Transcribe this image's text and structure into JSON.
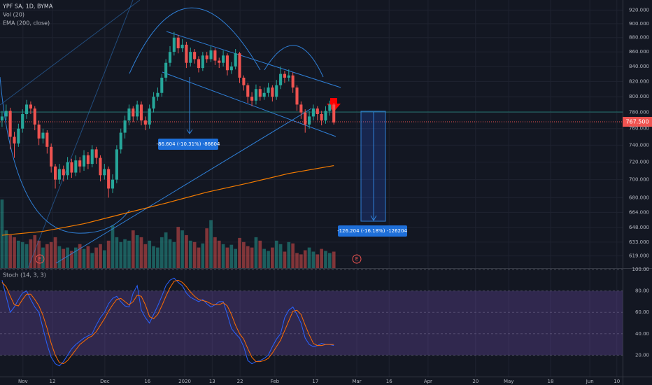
{
  "chart_data": {
    "type": "candlestick",
    "title": "YPF SA, 1D, BYMA",
    "indicators": [
      "Vol (20)",
      "EMA (200, close)"
    ],
    "up_color": "#26a69a",
    "down_color": "#ef5350",
    "log_scale": true,
    "grid": true,
    "xlim": [
      -0.5,
      151.5
    ],
    "xticks": [
      {
        "value": 5.1,
        "label": "Nov"
      },
      {
        "value": 12.3,
        "label": "12"
      },
      {
        "value": 25.1,
        "label": "Dec"
      },
      {
        "value": 35.5,
        "label": "16"
      },
      {
        "value": 44.6,
        "label": "2020"
      },
      {
        "value": 51.3,
        "label": "13"
      },
      {
        "value": 58.1,
        "label": "22"
      },
      {
        "value": 66.6,
        "label": "Feb"
      },
      {
        "value": 76.5,
        "label": "17"
      },
      {
        "value": 86.6,
        "label": "Mar"
      },
      {
        "value": 94.5,
        "label": "16"
      },
      {
        "value": 104,
        "label": "Apr"
      },
      {
        "value": 115.6,
        "label": "20"
      },
      {
        "value": 123.7,
        "label": "May"
      },
      {
        "value": 133.9,
        "label": "18"
      },
      {
        "value": 143.5,
        "label": "Jun"
      },
      {
        "value": 150.1,
        "label": "10"
      }
    ],
    "ylim": [
      607,
      935
    ],
    "yticks": [
      {
        "value": 920,
        "label": "920.000"
      },
      {
        "value": 900,
        "label": "900.000"
      },
      {
        "value": 880,
        "label": "880.000"
      },
      {
        "value": 860,
        "label": "860.000"
      },
      {
        "value": 840,
        "label": "840.000"
      },
      {
        "value": 820,
        "label": "820.000"
      },
      {
        "value": 800,
        "label": "800.000"
      },
      {
        "value": 780,
        "label": "780.000"
      },
      {
        "value": 760,
        "label": "760.000"
      },
      {
        "value": 740,
        "label": "740.000"
      },
      {
        "value": 720,
        "label": "720.000"
      },
      {
        "value": 700,
        "label": "700.000"
      },
      {
        "value": 680,
        "label": "680.000"
      },
      {
        "value": 664,
        "label": "664.000"
      },
      {
        "value": 648,
        "label": "648.000"
      },
      {
        "value": 633,
        "label": "633.000"
      },
      {
        "value": 619,
        "label": "619.000"
      }
    ],
    "last_price": {
      "value": 767.5,
      "label": "767.500"
    },
    "candles": [
      [
        770,
        782,
        762,
        775
      ],
      [
        775,
        790,
        770,
        782
      ],
      [
        782,
        786,
        735,
        750
      ],
      [
        750,
        756,
        725,
        742
      ],
      [
        742,
        766,
        738,
        760
      ],
      [
        760,
        784,
        755,
        778
      ],
      [
        778,
        796,
        772,
        790
      ],
      [
        790,
        794,
        778,
        785
      ],
      [
        785,
        788,
        758,
        765
      ],
      [
        765,
        770,
        740,
        748
      ],
      [
        748,
        760,
        742,
        755
      ],
      [
        755,
        758,
        730,
        738
      ],
      [
        738,
        742,
        708,
        715
      ],
      [
        715,
        718,
        690,
        700
      ],
      [
        700,
        718,
        695,
        712
      ],
      [
        712,
        716,
        698,
        705
      ],
      [
        705,
        726,
        700,
        720
      ],
      [
        720,
        724,
        702,
        708
      ],
      [
        708,
        728,
        704,
        722
      ],
      [
        722,
        726,
        708,
        715
      ],
      [
        715,
        734,
        710,
        728
      ],
      [
        728,
        732,
        712,
        718
      ],
      [
        718,
        740,
        714,
        735
      ],
      [
        735,
        738,
        718,
        725
      ],
      [
        725,
        728,
        698,
        705
      ],
      [
        705,
        718,
        700,
        712
      ],
      [
        712,
        715,
        680,
        690
      ],
      [
        690,
        706,
        685,
        700
      ],
      [
        700,
        740,
        696,
        735
      ],
      [
        735,
        760,
        730,
        755
      ],
      [
        755,
        776,
        748,
        770
      ],
      [
        770,
        790,
        764,
        785
      ],
      [
        785,
        788,
        768,
        775
      ],
      [
        775,
        795,
        770,
        790
      ],
      [
        790,
        794,
        764,
        770
      ],
      [
        770,
        775,
        758,
        765
      ],
      [
        765,
        790,
        760,
        785
      ],
      [
        785,
        806,
        780,
        800
      ],
      [
        800,
        812,
        795,
        805
      ],
      [
        805,
        830,
        800,
        825
      ],
      [
        825,
        850,
        820,
        845
      ],
      [
        845,
        868,
        840,
        860
      ],
      [
        860,
        888,
        855,
        880
      ],
      [
        880,
        884,
        858,
        865
      ],
      [
        865,
        878,
        860,
        870
      ],
      [
        870,
        874,
        838,
        845
      ],
      [
        845,
        866,
        840,
        860
      ],
      [
        860,
        864,
        844,
        850
      ],
      [
        850,
        854,
        832,
        838
      ],
      [
        838,
        860,
        834,
        855
      ],
      [
        855,
        860,
        845,
        850
      ],
      [
        850,
        868,
        846,
        862
      ],
      [
        862,
        865,
        842,
        848
      ],
      [
        848,
        852,
        838,
        845
      ],
      [
        845,
        862,
        840,
        855
      ],
      [
        855,
        858,
        828,
        835
      ],
      [
        835,
        846,
        830,
        840
      ],
      [
        840,
        864,
        836,
        858
      ],
      [
        858,
        860,
        818,
        825
      ],
      [
        825,
        828,
        808,
        815
      ],
      [
        815,
        818,
        792,
        800
      ],
      [
        800,
        806,
        788,
        795
      ],
      [
        795,
        816,
        790,
        810
      ],
      [
        810,
        814,
        795,
        800
      ],
      [
        800,
        812,
        796,
        805
      ],
      [
        805,
        818,
        800,
        812
      ],
      [
        812,
        815,
        794,
        800
      ],
      [
        800,
        822,
        796,
        815
      ],
      [
        815,
        840,
        810,
        830
      ],
      [
        830,
        834,
        818,
        825
      ],
      [
        825,
        836,
        820,
        828
      ],
      [
        828,
        832,
        805,
        812
      ],
      [
        812,
        815,
        782,
        790
      ],
      [
        790,
        794,
        772,
        780
      ],
      [
        780,
        784,
        755,
        765
      ],
      [
        765,
        782,
        760,
        775
      ],
      [
        775,
        790,
        770,
        785
      ],
      [
        785,
        788,
        770,
        778
      ],
      [
        778,
        782,
        764,
        770
      ],
      [
        770,
        788,
        766,
        782
      ],
      [
        782,
        795,
        776,
        790
      ],
      [
        790,
        792,
        765,
        767.5
      ]
    ],
    "volume": [
      100,
      55,
      48,
      45,
      40,
      38,
      35,
      42,
      48,
      40,
      30,
      35,
      38,
      45,
      32,
      28,
      30,
      25,
      30,
      35,
      28,
      32,
      22,
      30,
      35,
      26,
      40,
      62,
      45,
      38,
      42,
      40,
      55,
      48,
      45,
      35,
      40,
      32,
      30,
      45,
      52,
      42,
      38,
      60,
      55,
      48,
      40,
      38,
      30,
      36,
      58,
      70,
      45,
      40,
      35,
      30,
      34,
      28,
      44,
      38,
      32,
      30,
      45,
      40,
      28,
      25,
      30,
      40,
      35,
      24,
      38,
      36,
      22,
      20,
      26,
      30,
      24,
      20,
      28,
      25,
      22,
      24
    ],
    "ema": {
      "color": "#f57c00",
      "x": [
        0,
        10,
        20,
        30,
        40,
        50,
        60,
        70,
        81
      ],
      "values": [
        640,
        644,
        652,
        663,
        674,
        686,
        696,
        707,
        716
      ]
    },
    "annotations": [
      "-86.604 (-10.31%) -86604",
      "-126.204 (-16.18%) -126204"
    ],
    "events": [
      "E",
      "E"
    ],
    "stoch": {
      "title": "Stoch (14, 3, 3)",
      "ylim": [
        0,
        100
      ],
      "yticks": [
        {
          "value": 100,
          "label": "100.00"
        },
        {
          "value": 80,
          "label": "80.00"
        },
        {
          "value": 60,
          "label": "60.00"
        },
        {
          "value": 40,
          "label": "40.00"
        },
        {
          "value": 20,
          "label": "20.00"
        }
      ],
      "series": [
        {
          "color": "#2962ff",
          "values": [
            90,
            75,
            60,
            65,
            72,
            78,
            80,
            72,
            65,
            60,
            45,
            30,
            18,
            12,
            10,
            14,
            20,
            26,
            30,
            33,
            36,
            38,
            40,
            48,
            55,
            60,
            68,
            73,
            75,
            70,
            66,
            65,
            78,
            85,
            62,
            55,
            50,
            58,
            66,
            75,
            85,
            90,
            92,
            88,
            85,
            78,
            74,
            72,
            70,
            72,
            68,
            65,
            67,
            70,
            70,
            58,
            45,
            40,
            36,
            28,
            15,
            12,
            14,
            15,
            17,
            20,
            28,
            35,
            40,
            55,
            62,
            65,
            58,
            50,
            36,
            30,
            28,
            29,
            31,
            30,
            30,
            29
          ]
        },
        {
          "color": "#ff6d00",
          "values": [
            88,
            84,
            75,
            67,
            66,
            72,
            77,
            77,
            72,
            66,
            57,
            45,
            31,
            20,
            13,
            12,
            15,
            20,
            25,
            30,
            33,
            36,
            38,
            42,
            48,
            54,
            61,
            67,
            72,
            73,
            70,
            67,
            70,
            76,
            75,
            67,
            56,
            54,
            58,
            66,
            75,
            83,
            89,
            90,
            88,
            84,
            79,
            75,
            72,
            71,
            70,
            68,
            67,
            67,
            69,
            66,
            58,
            48,
            40,
            35,
            26,
            18,
            14,
            14,
            15,
            17,
            22,
            28,
            34,
            43,
            52,
            61,
            62,
            58,
            48,
            39,
            31,
            29,
            29,
            30,
            30,
            30
          ]
        }
      ]
    }
  }
}
